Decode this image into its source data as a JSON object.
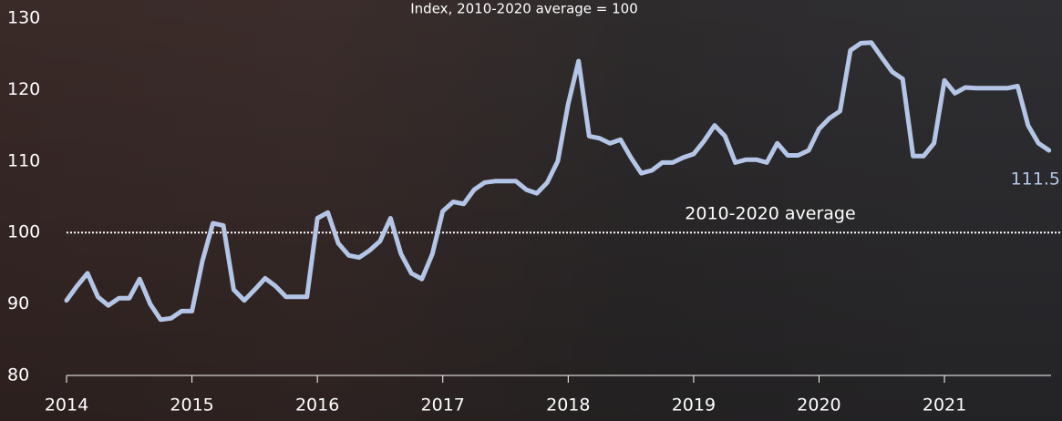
{
  "chart_data": {
    "type": "line",
    "subtitle": "Index, 2010-2020 average = 100",
    "color": "#b4c6e7",
    "x": [
      2014,
      2014.083,
      2014.167,
      2014.25,
      2014.333,
      2014.417,
      2014.5,
      2014.583,
      2014.667,
      2014.75,
      2014.833,
      2014.917,
      2015,
      2015.083,
      2015.167,
      2015.25,
      2015.333,
      2015.417,
      2015.5,
      2015.583,
      2015.667,
      2015.75,
      2015.833,
      2015.917,
      2016,
      2016.083,
      2016.167,
      2016.25,
      2016.333,
      2016.417,
      2016.5,
      2016.583,
      2016.667,
      2016.75,
      2016.833,
      2016.917,
      2017,
      2017.083,
      2017.167,
      2017.25,
      2017.333,
      2017.417,
      2017.5,
      2017.583,
      2017.667,
      2017.75,
      2017.833,
      2017.917,
      2018,
      2018.083,
      2018.167,
      2018.25,
      2018.333,
      2018.417,
      2018.5,
      2018.583,
      2018.667,
      2018.75,
      2018.833,
      2018.917,
      2019,
      2019.083,
      2019.167,
      2019.25,
      2019.333,
      2019.417,
      2019.5,
      2019.583,
      2019.667,
      2019.75,
      2019.833,
      2019.917,
      2020,
      2020.083,
      2020.167,
      2020.25,
      2020.333,
      2020.417,
      2020.5,
      2020.583,
      2020.667,
      2020.75,
      2020.833,
      2020.917,
      2021,
      2021.083,
      2021.167,
      2021.25,
      2021.333,
      2021.417,
      2021.5,
      2021.583,
      2021.667,
      2021.75,
      2021.833
    ],
    "values": [
      90.5,
      92.5,
      94.3,
      91,
      89.8,
      90.8,
      90.8,
      93.5,
      90,
      87.8,
      88,
      89,
      89,
      96,
      101.3,
      101,
      92,
      90.5,
      92,
      93.6,
      92.5,
      91,
      91,
      91,
      102,
      102.8,
      98.5,
      96.8,
      96.5,
      97.5,
      98.8,
      102,
      97,
      94.3,
      93.5,
      97,
      103,
      104.3,
      104,
      106,
      107,
      107.2,
      107.2,
      107.2,
      106,
      105.5,
      107,
      110,
      118,
      124,
      113.5,
      113.2,
      112.5,
      113,
      110.5,
      108.3,
      108.7,
      109.8,
      109.8,
      110.5,
      111,
      112.8,
      115,
      113.5,
      109.8,
      110.2,
      110.2,
      109.8,
      112.5,
      110.8,
      110.8,
      111.5,
      114.5,
      116,
      117,
      125.5,
      126.5,
      126.6,
      124.5,
      122.5,
      121.5,
      110.7,
      110.7,
      112.5,
      121.3,
      119.5,
      120.3,
      120.2,
      120.2,
      120.2,
      120.2,
      120.5,
      115,
      112.5,
      111.5
    ],
    "xlim": [
      2014,
      2021.85
    ],
    "xticks": [
      2014,
      2015,
      2016,
      2017,
      2018,
      2019,
      2020,
      2021
    ],
    "ylim": [
      80,
      130
    ],
    "yticks": [
      80,
      90,
      100,
      110,
      120,
      130
    ],
    "reference_line": {
      "value": 100,
      "label": "2010-2020 average"
    }
  }
}
